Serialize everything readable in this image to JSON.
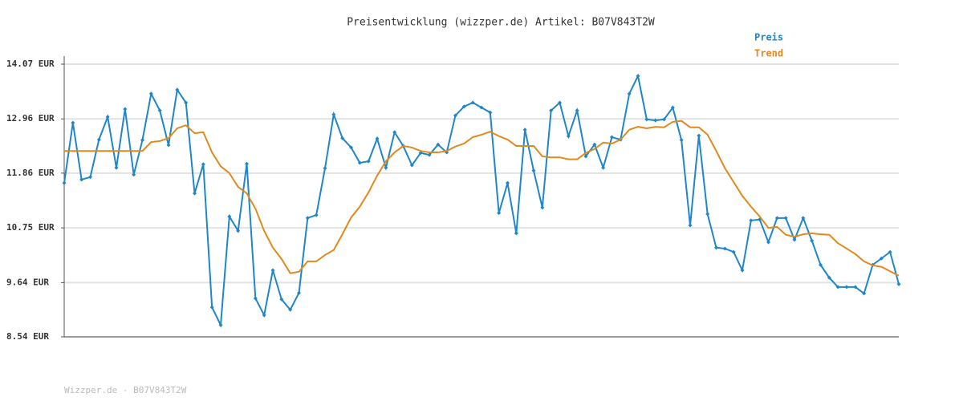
{
  "chart_data": {
    "type": "line",
    "title": "Preisentwicklung (wizzper.de) Artikel: B07V843T2W",
    "footer": "Wizzper.de - B07V843T2W",
    "grid": true,
    "legend": "top-right",
    "ylim": [
      8.54,
      14.07
    ],
    "yticks": [
      {
        "value": 8.54,
        "label": "8.54 EUR"
      },
      {
        "value": 9.64,
        "label": "9.64 EUR"
      },
      {
        "value": 10.75,
        "label": "10.75 EUR"
      },
      {
        "value": 11.86,
        "label": "11.86 EUR"
      },
      {
        "value": 12.96,
        "label": "12.96 EUR"
      },
      {
        "value": 14.07,
        "label": "14.07 EUR"
      }
    ],
    "series": [
      {
        "name": "Preis",
        "color": "#1f86c8",
        "markers": true,
        "values": [
          11.66,
          12.88,
          11.73,
          11.78,
          12.54,
          13.0,
          11.97,
          13.16,
          11.83,
          12.53,
          13.47,
          13.13,
          12.43,
          13.55,
          13.29,
          11.45,
          12.04,
          9.14,
          8.78,
          10.98,
          10.69,
          12.05,
          9.32,
          8.98,
          9.89,
          9.3,
          9.09,
          9.43,
          10.95,
          11.01,
          11.96,
          13.05,
          12.57,
          12.38,
          12.07,
          12.1,
          12.56,
          11.97,
          12.69,
          12.41,
          12.02,
          12.27,
          12.23,
          12.44,
          12.28,
          13.03,
          13.21,
          13.29,
          13.19,
          13.09,
          11.05,
          11.66,
          10.64,
          12.74,
          11.91,
          11.16,
          13.13,
          13.29,
          12.61,
          13.13,
          12.2,
          12.44,
          11.97,
          12.59,
          12.54,
          13.47,
          13.83,
          12.95,
          12.93,
          12.95,
          13.19,
          12.53,
          10.8,
          12.62,
          11.03,
          10.35,
          10.33,
          10.26,
          9.89,
          10.9,
          10.92,
          10.46,
          10.95,
          10.95,
          10.51,
          10.95,
          10.49,
          10.0,
          9.74,
          9.55,
          9.55,
          9.55,
          9.42,
          10.0,
          10.13,
          10.26,
          9.61
        ]
      },
      {
        "name": "Trend",
        "color": "#e08a1e",
        "markers": false,
        "values": [
          12.31,
          12.31,
          12.31,
          12.31,
          12.31,
          12.31,
          12.31,
          12.31,
          12.31,
          12.31,
          12.49,
          12.51,
          12.57,
          12.77,
          12.83,
          12.67,
          12.69,
          12.28,
          12.0,
          11.86,
          11.58,
          11.45,
          11.14,
          10.69,
          10.35,
          10.12,
          9.83,
          9.86,
          10.07,
          10.07,
          10.2,
          10.3,
          10.62,
          10.96,
          11.18,
          11.47,
          11.81,
          12.1,
          12.28,
          12.41,
          12.38,
          12.31,
          12.28,
          12.28,
          12.31,
          12.4,
          12.46,
          12.59,
          12.64,
          12.7,
          12.61,
          12.54,
          12.41,
          12.41,
          12.41,
          12.2,
          12.18,
          12.18,
          12.14,
          12.14,
          12.27,
          12.35,
          12.48,
          12.46,
          12.54,
          12.74,
          12.8,
          12.77,
          12.8,
          12.79,
          12.9,
          12.92,
          12.79,
          12.79,
          12.64,
          12.31,
          11.96,
          11.68,
          11.4,
          11.18,
          10.98,
          10.75,
          10.77,
          10.61,
          10.57,
          10.62,
          10.64,
          10.62,
          10.61,
          10.44,
          10.33,
          10.22,
          10.07,
          9.99,
          9.96,
          9.87,
          9.78
        ]
      }
    ]
  }
}
